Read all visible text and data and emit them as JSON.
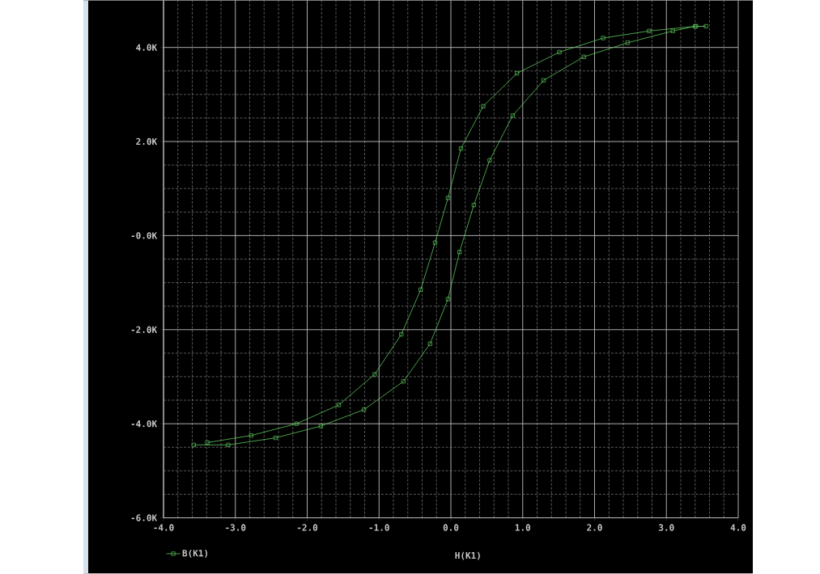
{
  "chart_data": {
    "type": "line",
    "xlabel": "H(K1)",
    "series": [
      {
        "name": "B(K1)",
        "color": "#5cc85c",
        "x": [
          -3.58,
          -3.1,
          -2.44,
          -1.81,
          -1.21,
          -0.66,
          -0.29,
          -0.04,
          0.12,
          0.32,
          0.54,
          0.86,
          1.29,
          1.85,
          2.46,
          3.09,
          3.4,
          3.55,
          3.41,
          2.76,
          2.12,
          1.51,
          0.92,
          0.45,
          0.14,
          -0.04,
          -0.22,
          -0.42,
          -0.69,
          -1.06,
          -1.56,
          -2.15,
          -2.78,
          -3.39
        ],
        "values": [
          -4450,
          -4450,
          -4300,
          -4050,
          -3700,
          -3100,
          -2300,
          -1350,
          -350,
          650,
          1600,
          2550,
          3300,
          3800,
          4100,
          4350,
          4450,
          4450,
          4450,
          4350,
          4200,
          3900,
          3450,
          2750,
          1850,
          800,
          -150,
          -1150,
          -2100,
          -2950,
          -3600,
          -4000,
          -4250,
          -4400
        ]
      }
    ],
    "xlim": [
      -4,
      4
    ],
    "ylim": [
      -6000,
      5000
    ],
    "xticks": [
      {
        "value": -4,
        "label": "-4.0"
      },
      {
        "value": -3,
        "label": "-3.0"
      },
      {
        "value": -2,
        "label": "-2.0"
      },
      {
        "value": -1,
        "label": "-1.0"
      },
      {
        "value": 0,
        "label": "0.0"
      },
      {
        "value": 1,
        "label": "1.0"
      },
      {
        "value": 2,
        "label": "2.0"
      },
      {
        "value": 3,
        "label": "3.0"
      },
      {
        "value": 4,
        "label": "4.0"
      }
    ],
    "yticks": [
      {
        "value": -6000,
        "label": "-6.0K"
      },
      {
        "value": -4000,
        "label": "-4.0K"
      },
      {
        "value": -2000,
        "label": "-2.0K"
      },
      {
        "value": 0,
        "label": "-0.0K"
      },
      {
        "value": 2000,
        "label": "2.0K"
      },
      {
        "value": 4000,
        "label": "4.0K"
      }
    ],
    "grid": true,
    "legend": "bottom left",
    "marker": "square",
    "line_style": "solid"
  }
}
